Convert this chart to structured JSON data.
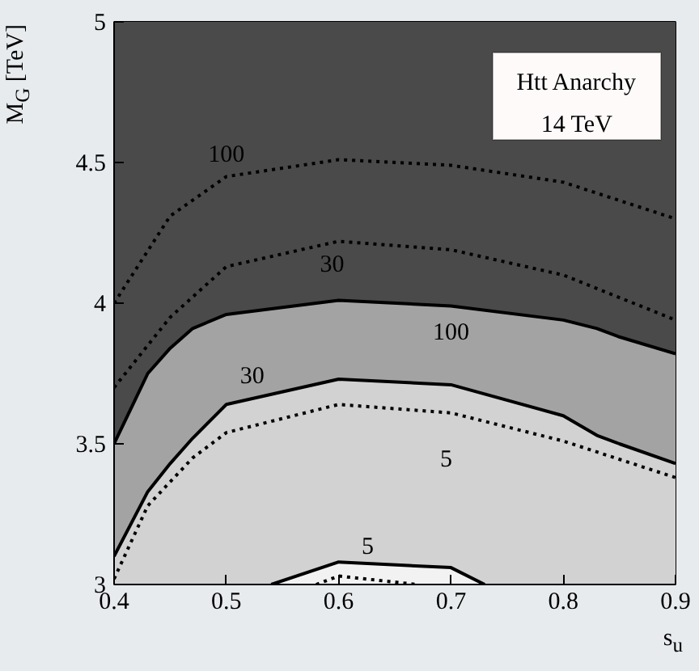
{
  "chart_data": {
    "type": "area",
    "xlabel": "s$_{u}$",
    "ylabel": "M$_{G}$ [TeV]",
    "xlim": [
      0.4,
      0.9
    ],
    "ylim": [
      3,
      5
    ],
    "xticks": [
      0.4,
      0.5,
      0.6,
      0.7,
      0.8,
      0.9
    ],
    "yticks": [
      3,
      3.5,
      4,
      4.5,
      5
    ],
    "x": [
      0.4,
      0.43,
      0.45,
      0.47,
      0.5,
      0.6,
      0.7,
      0.8,
      0.83,
      0.85,
      0.9
    ],
    "bands": [
      {
        "axis": "y",
        "from": 3,
        "to": 5,
        "color": "#4a4a4a"
      }
    ],
    "series": [
      {
        "name": "100",
        "color": "#a3a3a3",
        "line_style": "solid",
        "values": [
          3.5,
          3.75,
          3.84,
          3.91,
          3.96,
          4.01,
          3.99,
          3.94,
          3.91,
          3.88,
          3.82
        ]
      },
      {
        "name": "30",
        "color": "#d2d2d2",
        "line_style": "solid",
        "values": [
          3.1,
          3.33,
          3.43,
          3.52,
          3.64,
          3.73,
          3.71,
          3.6,
          3.53,
          3.5,
          3.43
        ]
      },
      {
        "name": "5",
        "color": "#f2f2f2",
        "line_style": "solid",
        "x": [
          0.54,
          0.6,
          0.7,
          0.73
        ],
        "values": [
          3.0,
          3.08,
          3.06,
          3.0
        ]
      },
      {
        "name": "100",
        "type": "line",
        "color": "#000000",
        "line_style": "dotted",
        "x": [
          0.4,
          0.45,
          0.5,
          0.6,
          0.7,
          0.8,
          0.9
        ],
        "values": [
          4.0,
          4.31,
          4.45,
          4.51,
          4.49,
          4.43,
          4.3
        ]
      },
      {
        "name": "30",
        "type": "line",
        "color": "#000000",
        "line_style": "dotted",
        "x": [
          0.4,
          0.45,
          0.5,
          0.6,
          0.7,
          0.8,
          0.9
        ],
        "values": [
          3.7,
          3.95,
          4.13,
          4.22,
          4.19,
          4.1,
          3.94
        ]
      },
      {
        "name": "5",
        "type": "line",
        "color": "#000000",
        "line_style": "dotted",
        "x": [
          0.4,
          0.43,
          0.47,
          0.5,
          0.6,
          0.7,
          0.8,
          0.9
        ],
        "values": [
          3.02,
          3.28,
          3.45,
          3.54,
          3.64,
          3.61,
          3.51,
          3.38
        ]
      },
      {
        "type": "line",
        "color": "#000000",
        "line_style": "dotted",
        "x": [
          0.58,
          0.6,
          0.67
        ],
        "values": [
          3.0,
          3.03,
          3.0
        ]
      }
    ],
    "annotations": [
      "Htt Anarchy",
      "14 TeV"
    ]
  }
}
